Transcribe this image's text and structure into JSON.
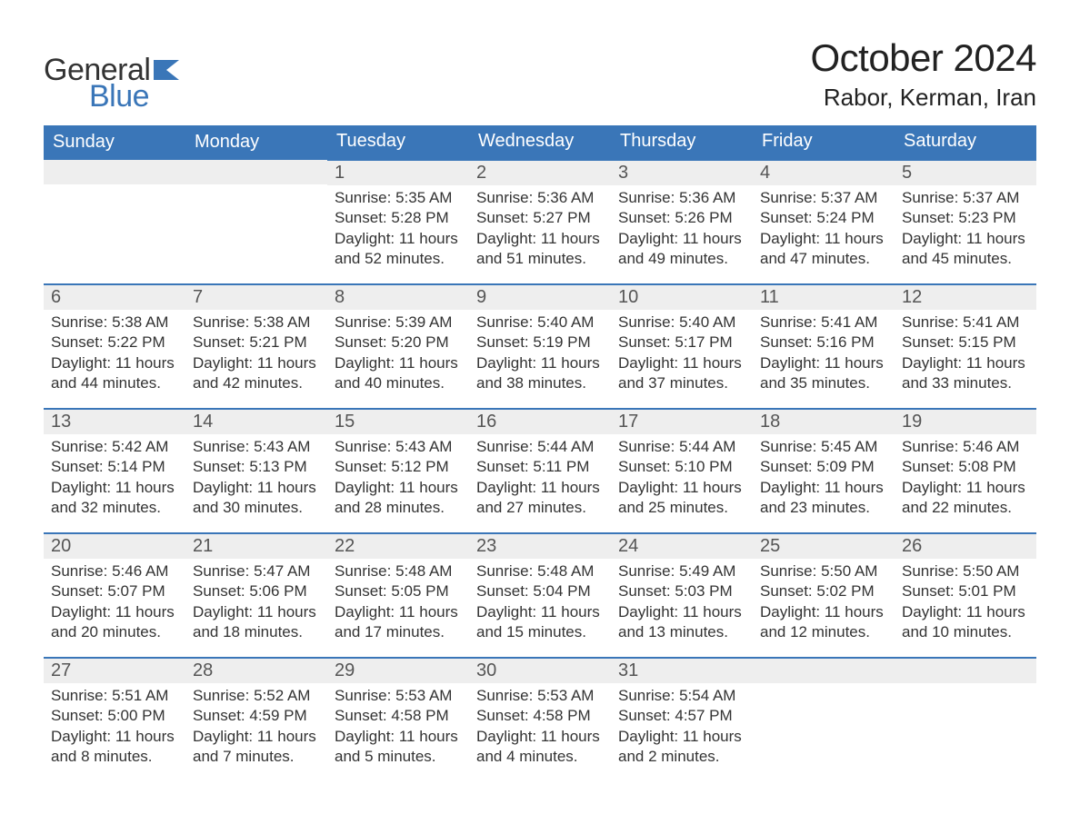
{
  "logo": {
    "text1": "General",
    "text2": "Blue",
    "flag_color": "#3a76b8"
  },
  "title": "October 2024",
  "location": "Rabor, Kerman, Iran",
  "day_headers": [
    "Sunday",
    "Monday",
    "Tuesday",
    "Wednesday",
    "Thursday",
    "Friday",
    "Saturday"
  ],
  "colors": {
    "header_bg": "#3a76b8",
    "header_text": "#ffffff",
    "daynum_bg": "#eeeeee",
    "daynum_text": "#555555",
    "body_text": "#333333",
    "border": "#3a76b8",
    "page_bg": "#ffffff"
  },
  "typography": {
    "title_fontsize": 42,
    "location_fontsize": 26,
    "header_fontsize": 20,
    "daynum_fontsize": 20,
    "body_fontsize": 17,
    "font_family": "Arial"
  },
  "weeks": [
    [
      null,
      null,
      {
        "n": "1",
        "sunrise": "Sunrise: 5:35 AM",
        "sunset": "Sunset: 5:28 PM",
        "dl1": "Daylight: 11 hours",
        "dl2": "and 52 minutes."
      },
      {
        "n": "2",
        "sunrise": "Sunrise: 5:36 AM",
        "sunset": "Sunset: 5:27 PM",
        "dl1": "Daylight: 11 hours",
        "dl2": "and 51 minutes."
      },
      {
        "n": "3",
        "sunrise": "Sunrise: 5:36 AM",
        "sunset": "Sunset: 5:26 PM",
        "dl1": "Daylight: 11 hours",
        "dl2": "and 49 minutes."
      },
      {
        "n": "4",
        "sunrise": "Sunrise: 5:37 AM",
        "sunset": "Sunset: 5:24 PM",
        "dl1": "Daylight: 11 hours",
        "dl2": "and 47 minutes."
      },
      {
        "n": "5",
        "sunrise": "Sunrise: 5:37 AM",
        "sunset": "Sunset: 5:23 PM",
        "dl1": "Daylight: 11 hours",
        "dl2": "and 45 minutes."
      }
    ],
    [
      {
        "n": "6",
        "sunrise": "Sunrise: 5:38 AM",
        "sunset": "Sunset: 5:22 PM",
        "dl1": "Daylight: 11 hours",
        "dl2": "and 44 minutes."
      },
      {
        "n": "7",
        "sunrise": "Sunrise: 5:38 AM",
        "sunset": "Sunset: 5:21 PM",
        "dl1": "Daylight: 11 hours",
        "dl2": "and 42 minutes."
      },
      {
        "n": "8",
        "sunrise": "Sunrise: 5:39 AM",
        "sunset": "Sunset: 5:20 PM",
        "dl1": "Daylight: 11 hours",
        "dl2": "and 40 minutes."
      },
      {
        "n": "9",
        "sunrise": "Sunrise: 5:40 AM",
        "sunset": "Sunset: 5:19 PM",
        "dl1": "Daylight: 11 hours",
        "dl2": "and 38 minutes."
      },
      {
        "n": "10",
        "sunrise": "Sunrise: 5:40 AM",
        "sunset": "Sunset: 5:17 PM",
        "dl1": "Daylight: 11 hours",
        "dl2": "and 37 minutes."
      },
      {
        "n": "11",
        "sunrise": "Sunrise: 5:41 AM",
        "sunset": "Sunset: 5:16 PM",
        "dl1": "Daylight: 11 hours",
        "dl2": "and 35 minutes."
      },
      {
        "n": "12",
        "sunrise": "Sunrise: 5:41 AM",
        "sunset": "Sunset: 5:15 PM",
        "dl1": "Daylight: 11 hours",
        "dl2": "and 33 minutes."
      }
    ],
    [
      {
        "n": "13",
        "sunrise": "Sunrise: 5:42 AM",
        "sunset": "Sunset: 5:14 PM",
        "dl1": "Daylight: 11 hours",
        "dl2": "and 32 minutes."
      },
      {
        "n": "14",
        "sunrise": "Sunrise: 5:43 AM",
        "sunset": "Sunset: 5:13 PM",
        "dl1": "Daylight: 11 hours",
        "dl2": "and 30 minutes."
      },
      {
        "n": "15",
        "sunrise": "Sunrise: 5:43 AM",
        "sunset": "Sunset: 5:12 PM",
        "dl1": "Daylight: 11 hours",
        "dl2": "and 28 minutes."
      },
      {
        "n": "16",
        "sunrise": "Sunrise: 5:44 AM",
        "sunset": "Sunset: 5:11 PM",
        "dl1": "Daylight: 11 hours",
        "dl2": "and 27 minutes."
      },
      {
        "n": "17",
        "sunrise": "Sunrise: 5:44 AM",
        "sunset": "Sunset: 5:10 PM",
        "dl1": "Daylight: 11 hours",
        "dl2": "and 25 minutes."
      },
      {
        "n": "18",
        "sunrise": "Sunrise: 5:45 AM",
        "sunset": "Sunset: 5:09 PM",
        "dl1": "Daylight: 11 hours",
        "dl2": "and 23 minutes."
      },
      {
        "n": "19",
        "sunrise": "Sunrise: 5:46 AM",
        "sunset": "Sunset: 5:08 PM",
        "dl1": "Daylight: 11 hours",
        "dl2": "and 22 minutes."
      }
    ],
    [
      {
        "n": "20",
        "sunrise": "Sunrise: 5:46 AM",
        "sunset": "Sunset: 5:07 PM",
        "dl1": "Daylight: 11 hours",
        "dl2": "and 20 minutes."
      },
      {
        "n": "21",
        "sunrise": "Sunrise: 5:47 AM",
        "sunset": "Sunset: 5:06 PM",
        "dl1": "Daylight: 11 hours",
        "dl2": "and 18 minutes."
      },
      {
        "n": "22",
        "sunrise": "Sunrise: 5:48 AM",
        "sunset": "Sunset: 5:05 PM",
        "dl1": "Daylight: 11 hours",
        "dl2": "and 17 minutes."
      },
      {
        "n": "23",
        "sunrise": "Sunrise: 5:48 AM",
        "sunset": "Sunset: 5:04 PM",
        "dl1": "Daylight: 11 hours",
        "dl2": "and 15 minutes."
      },
      {
        "n": "24",
        "sunrise": "Sunrise: 5:49 AM",
        "sunset": "Sunset: 5:03 PM",
        "dl1": "Daylight: 11 hours",
        "dl2": "and 13 minutes."
      },
      {
        "n": "25",
        "sunrise": "Sunrise: 5:50 AM",
        "sunset": "Sunset: 5:02 PM",
        "dl1": "Daylight: 11 hours",
        "dl2": "and 12 minutes."
      },
      {
        "n": "26",
        "sunrise": "Sunrise: 5:50 AM",
        "sunset": "Sunset: 5:01 PM",
        "dl1": "Daylight: 11 hours",
        "dl2": "and 10 minutes."
      }
    ],
    [
      {
        "n": "27",
        "sunrise": "Sunrise: 5:51 AM",
        "sunset": "Sunset: 5:00 PM",
        "dl1": "Daylight: 11 hours",
        "dl2": "and 8 minutes."
      },
      {
        "n": "28",
        "sunrise": "Sunrise: 5:52 AM",
        "sunset": "Sunset: 4:59 PM",
        "dl1": "Daylight: 11 hours",
        "dl2": "and 7 minutes."
      },
      {
        "n": "29",
        "sunrise": "Sunrise: 5:53 AM",
        "sunset": "Sunset: 4:58 PM",
        "dl1": "Daylight: 11 hours",
        "dl2": "and 5 minutes."
      },
      {
        "n": "30",
        "sunrise": "Sunrise: 5:53 AM",
        "sunset": "Sunset: 4:58 PM",
        "dl1": "Daylight: 11 hours",
        "dl2": "and 4 minutes."
      },
      {
        "n": "31",
        "sunrise": "Sunrise: 5:54 AM",
        "sunset": "Sunset: 4:57 PM",
        "dl1": "Daylight: 11 hours",
        "dl2": "and 2 minutes."
      },
      null,
      null
    ]
  ]
}
